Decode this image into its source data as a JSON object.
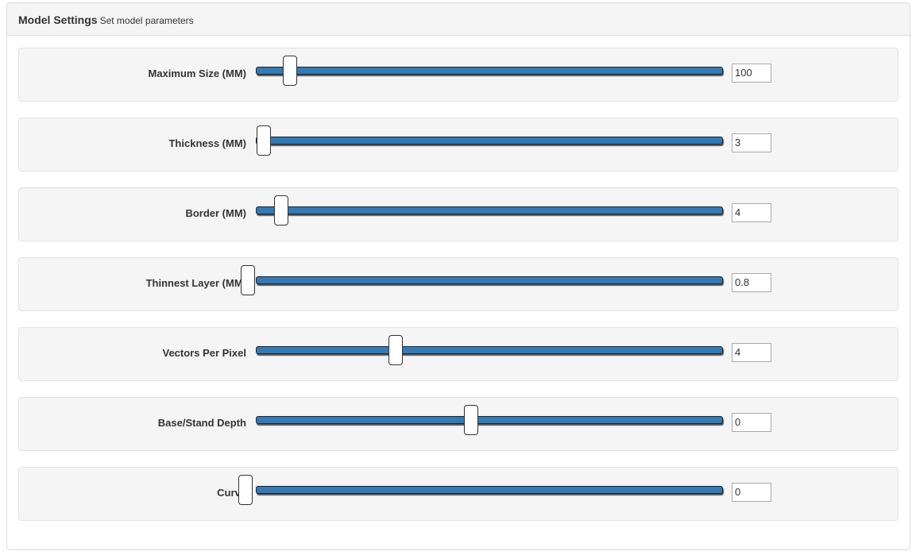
{
  "header": {
    "title": "Model Settings",
    "subtitle": "Set model parameters"
  },
  "settings": [
    {
      "label": "Maximum Size (MM)",
      "value": "100"
    },
    {
      "label": "Thickness (MM)",
      "value": "3"
    },
    {
      "label": "Border (MM)",
      "value": "4"
    },
    {
      "label": "Thinnest Layer (MM)",
      "value": "0.8"
    },
    {
      "label": "Vectors Per Pixel",
      "value": "4"
    },
    {
      "label": "Base/Stand Depth",
      "value": "0"
    },
    {
      "label": "Curve",
      "value": "0"
    }
  ]
}
